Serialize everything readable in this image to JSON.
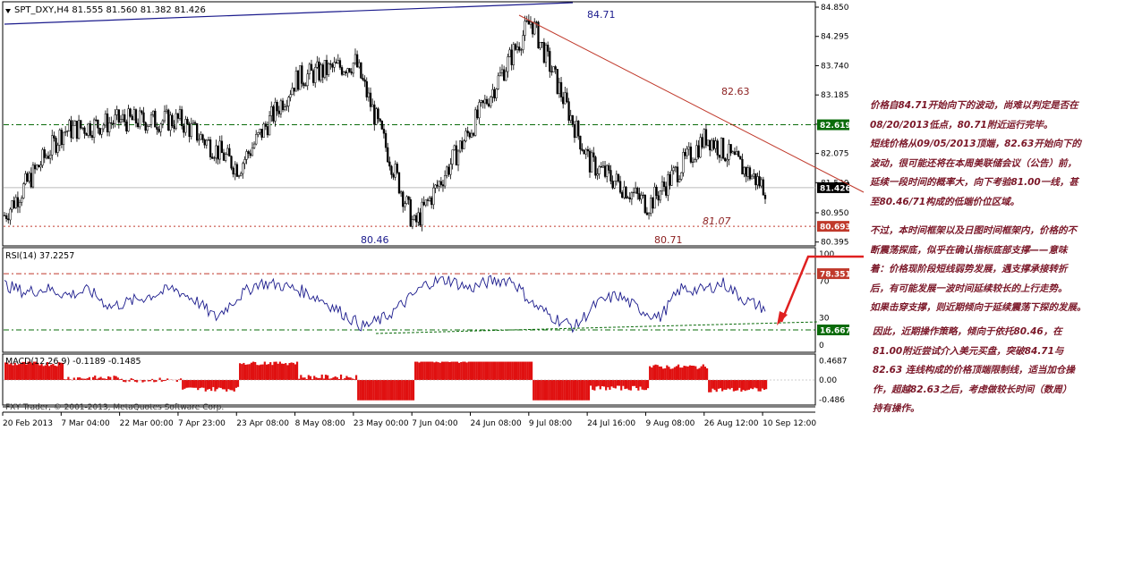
{
  "chart_data": [
    {
      "type": "candlestick",
      "symbol_header": "SPT_DXY,H4  81.555 81.560 81.382 81.426",
      "last_price": 81.426,
      "ylim": [
        80.39,
        84.85
      ],
      "y_ticks": [
        "84.850",
        "84.295",
        "83.740",
        "83.185",
        "82.630",
        "82.075",
        "81.520",
        "80.950",
        "80.395"
      ],
      "x_ticks": [
        "20 Feb 2013",
        "7 Mar 04:00",
        "22 Mar 00:00",
        "7 Apr 23:00",
        "23 Apr 08:00",
        "8 May 08:00",
        "23 May 00:00",
        "7 Jun 04:00",
        "24 Jun 08:00",
        "9 Jul 08:00",
        "24 Jul 16:00",
        "9 Aug 08:00",
        "26 Aug 12:00",
        "10 Sep 12:00"
      ],
      "approx_close_path": [
        {
          "x": "20 Feb 2013",
          "y": 80.9
        },
        {
          "x": "7 Mar 04:00",
          "y": 82.5
        },
        {
          "x": "22 Mar 00:00",
          "y": 82.7
        },
        {
          "x": "7 Apr 23:00",
          "y": 82.7
        },
        {
          "x": "23 Apr 08:00",
          "y": 81.8
        },
        {
          "x": "8 May 08:00",
          "y": 83.5
        },
        {
          "x": "23 May 00:00",
          "y": 83.8
        },
        {
          "x": "7 Jun 04:00",
          "y": 80.7
        },
        {
          "x": "24 Jun 08:00",
          "y": 82.6
        },
        {
          "x": "9 Jul 08:00",
          "y": 84.6
        },
        {
          "x": "24 Jul 16:00",
          "y": 81.9
        },
        {
          "x": "9 Aug 08:00",
          "y": 81.1
        },
        {
          "x": "26 Aug 12:00",
          "y": 82.4
        },
        {
          "x": "10 Sep 12:00",
          "y": 81.426
        }
      ],
      "levels": [
        {
          "value": 82.619,
          "label": "82.619",
          "style": "dash-dot",
          "color": "#0a6b0a"
        },
        {
          "value": 80.693,
          "label": "80.693",
          "style": "dashed",
          "color": "#c0392b"
        },
        {
          "value": 81.426,
          "label": "81.426",
          "style": "solid",
          "color": "#000000"
        }
      ],
      "annotations": [
        "84.71",
        "82.63",
        "81.07",
        "80.71",
        "80.46"
      ]
    },
    {
      "type": "line",
      "title": "RSI(14) 37.2257",
      "ylim": [
        0,
        100
      ],
      "y_ticks": [
        "100",
        "70",
        "30",
        "0"
      ],
      "levels": [
        {
          "value": 78.351,
          "label": "78.351",
          "color": "#c0392b"
        },
        {
          "value": 16.667,
          "label": "16.667",
          "color": "#0a6b0a"
        }
      ],
      "approx_values": [
        66,
        58,
        62,
        55,
        60,
        42,
        48,
        55,
        62,
        50,
        30,
        52,
        68,
        66,
        60,
        50,
        35,
        20,
        30,
        48,
        68,
        72,
        62,
        70,
        72,
        45,
        30,
        20,
        45,
        55,
        40,
        30,
        62,
        60,
        68,
        50,
        40
      ]
    },
    {
      "type": "area",
      "title": "MACD(12,26,9) -0.1189 -0.1485",
      "ylim": [
        -0.55,
        0.55
      ],
      "y_ticks": [
        "0.4687",
        "0.00",
        "-0.486"
      ]
    }
  ],
  "footer_text": "FXY Trader, © 2001-2013, MetaQuotes Software Corp.",
  "notes": [
    "价格自84.71开始向下的波动，尚难以判定是否在",
    "08/20/2013低点，80.71附近运行完毕。",
    "短线价格从09/05/2013顶端，82.63开始向下的",
    "波动，很可能还将在本周美联储会议（公告）前，",
    "延续一段时间的概率大，向下考验81.00一线，甚",
    "至80.46/71构成的低端价位区域。",
    "不过，本时间框架以及日图时间框架内，价格的不",
    "断震荡探底，似乎在确认指标底部支撑——意味",
    "着：价格现阶段短线弱势发展，遇支撑承接转折",
    "后，有可能发展一波时间延续较长的上行走势。",
    "如果击穿支撑，则近期倾向于延续震荡下探的发展。",
    "因此，近期操作策略，倾向于依托80.46，在",
    "81.00附近尝试介入美元买盘，突破84.71与",
    "82.63 连线构成的价格顶端限制线，适当加仓操",
    "作，超越82.63之后，考虑做较长时间（数周）",
    "持有操作。"
  ]
}
